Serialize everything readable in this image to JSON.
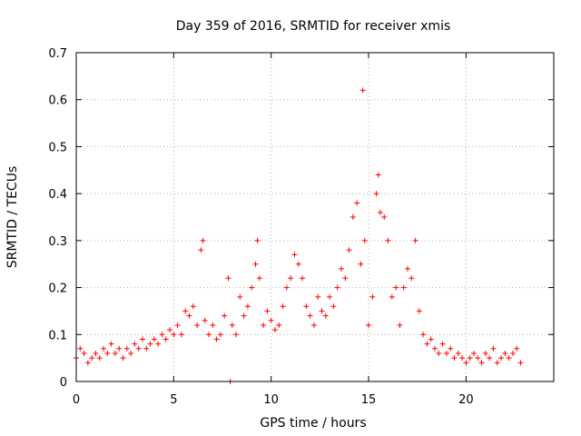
{
  "chart_data": {
    "type": "scatter",
    "title": "Day 359 of 2016, SRMTID for receiver xmis",
    "xlabel": "GPS time / hours",
    "ylabel": "SRMTID / TECUs",
    "xlim": [
      0,
      24.5
    ],
    "ylim": [
      0,
      0.7
    ],
    "xticks": [
      0,
      5,
      10,
      15,
      20
    ],
    "yticks": [
      0,
      0.1,
      0.2,
      0.3,
      0.4,
      0.5,
      0.6,
      0.7
    ],
    "ytick_labels": [
      "0",
      "0.1",
      "0.2",
      "0.3",
      "0.4",
      "0.5",
      "0.6",
      "0.7"
    ],
    "grid": true,
    "marker": "+",
    "color": "#ff0000",
    "series": [
      {
        "name": "xmis",
        "x": [
          0.0,
          0.2,
          0.4,
          0.6,
          0.8,
          1.0,
          1.2,
          1.4,
          1.6,
          1.8,
          2.0,
          2.2,
          2.4,
          2.6,
          2.8,
          3.0,
          3.2,
          3.4,
          3.6,
          3.8,
          4.0,
          4.2,
          4.4,
          4.6,
          4.8,
          5.0,
          5.2,
          5.4,
          5.6,
          5.8,
          6.0,
          6.2,
          6.4,
          6.5,
          6.6,
          6.8,
          7.0,
          7.2,
          7.4,
          7.6,
          7.8,
          7.9,
          8.0,
          8.2,
          8.4,
          8.6,
          8.8,
          9.0,
          9.2,
          9.3,
          9.4,
          9.6,
          9.8,
          10.0,
          10.2,
          10.4,
          10.6,
          10.8,
          11.0,
          11.2,
          11.4,
          11.6,
          11.8,
          12.0,
          12.2,
          12.4,
          12.6,
          12.8,
          13.0,
          13.2,
          13.4,
          13.6,
          13.8,
          14.0,
          14.2,
          14.4,
          14.6,
          14.7,
          14.8,
          15.0,
          15.2,
          15.4,
          15.5,
          15.6,
          15.8,
          16.0,
          16.2,
          16.4,
          16.6,
          16.8,
          17.0,
          17.2,
          17.4,
          17.6,
          17.8,
          18.0,
          18.2,
          18.4,
          18.6,
          18.8,
          19.0,
          19.2,
          19.4,
          19.6,
          19.8,
          20.0,
          20.2,
          20.4,
          20.6,
          20.8,
          21.0,
          21.2,
          21.4,
          21.6,
          21.8,
          22.0,
          22.2,
          22.4,
          22.6,
          22.8
        ],
        "y": [
          0.05,
          0.07,
          0.06,
          0.04,
          0.05,
          0.06,
          0.05,
          0.07,
          0.06,
          0.08,
          0.06,
          0.07,
          0.05,
          0.07,
          0.06,
          0.08,
          0.07,
          0.09,
          0.07,
          0.08,
          0.09,
          0.08,
          0.1,
          0.09,
          0.11,
          0.1,
          0.12,
          0.1,
          0.15,
          0.14,
          0.16,
          0.12,
          0.28,
          0.3,
          0.13,
          0.1,
          0.12,
          0.09,
          0.1,
          0.14,
          0.22,
          0.0,
          0.12,
          0.1,
          0.18,
          0.14,
          0.16,
          0.2,
          0.25,
          0.3,
          0.22,
          0.12,
          0.15,
          0.13,
          0.11,
          0.12,
          0.16,
          0.2,
          0.22,
          0.27,
          0.25,
          0.22,
          0.16,
          0.14,
          0.12,
          0.18,
          0.15,
          0.14,
          0.18,
          0.16,
          0.2,
          0.24,
          0.22,
          0.28,
          0.35,
          0.38,
          0.25,
          0.62,
          0.3,
          0.12,
          0.18,
          0.4,
          0.44,
          0.36,
          0.35,
          0.3,
          0.18,
          0.2,
          0.12,
          0.2,
          0.24,
          0.22,
          0.3,
          0.15,
          0.1,
          0.08,
          0.09,
          0.07,
          0.06,
          0.08,
          0.06,
          0.07,
          0.05,
          0.06,
          0.05,
          0.04,
          0.05,
          0.06,
          0.05,
          0.04,
          0.06,
          0.05,
          0.07,
          0.04,
          0.05,
          0.06,
          0.05,
          0.06,
          0.07,
          0.04
        ]
      }
    ]
  }
}
